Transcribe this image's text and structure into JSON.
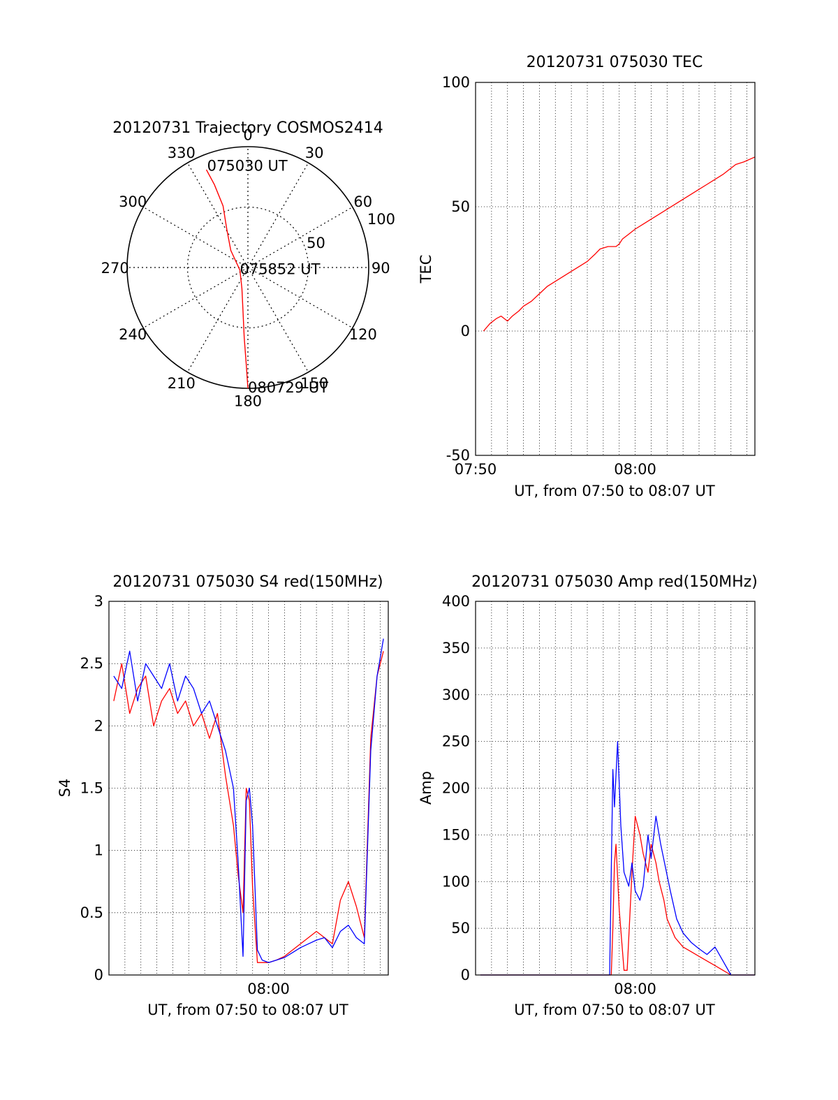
{
  "colors": {
    "red": "#ff0000",
    "blue": "#0000ff",
    "axis": "#000000"
  },
  "chart_data": [
    {
      "id": "trajectory",
      "type": "polar",
      "title": "20120731 Trajectory COSMOS2414",
      "azimuth_labels": [
        "0",
        "30",
        "60",
        "90",
        "120",
        "150",
        "180",
        "210",
        "240",
        "270",
        "300",
        "330"
      ],
      "ring_labels": [
        "50",
        "100"
      ],
      "radius_max": 100,
      "rings": [
        50,
        100
      ],
      "series": [
        {
          "color": "red",
          "points": [
            [
              337,
              88
            ],
            [
              338,
              74
            ],
            [
              338,
              55
            ],
            [
              331,
              36
            ],
            [
              315,
              20
            ],
            [
              252,
              7
            ],
            [
              196,
              18
            ],
            [
              186,
              38
            ],
            [
              183,
              58
            ],
            [
              181,
              80
            ],
            [
              180,
              100
            ]
          ]
        }
      ],
      "annotations": [
        {
          "text": "075030 UT",
          "azimuth": 338,
          "radius": 90
        },
        {
          "text": "075852 UT",
          "azimuth": 252,
          "radius": 7
        },
        {
          "text": "080729 UT",
          "azimuth": 180,
          "radius": 100
        }
      ]
    },
    {
      "id": "tec",
      "type": "line",
      "title": "20120731 075030 TEC",
      "xlabel": "UT, from 07:50 to 08:07 UT",
      "ylabel": "TEC",
      "xlim": [
        0,
        17.5
      ],
      "ylim": [
        -50,
        100
      ],
      "yticks": [
        "-50",
        "0",
        "50",
        "100"
      ],
      "xticks": [
        {
          "value": 0,
          "label": "07:50"
        },
        {
          "value": 10,
          "label": "08:00"
        }
      ],
      "series": [
        {
          "color": "red",
          "x": [
            0.5,
            0.9,
            1.3,
            1.6,
            2.0,
            2.3,
            2.7,
            3.0,
            3.5,
            4.0,
            4.5,
            5.0,
            5.5,
            6.0,
            6.5,
            7.0,
            7.5,
            7.8,
            8.3,
            8.8,
            9.0,
            9.2,
            9.6,
            10.0,
            10.5,
            11.0,
            11.5,
            12.0,
            12.5,
            13.0,
            13.5,
            14.0,
            14.5,
            15.0,
            15.5,
            15.9,
            16.3,
            16.8,
            17.5
          ],
          "y": [
            0,
            3,
            5,
            6,
            4,
            6,
            8,
            10,
            12,
            15,
            18,
            20,
            22,
            24,
            26,
            28,
            31,
            33,
            34,
            34,
            35,
            37,
            39,
            41,
            43,
            45,
            47,
            49,
            51,
            53,
            55,
            57,
            59,
            61,
            63,
            65,
            67,
            68,
            70
          ]
        }
      ]
    },
    {
      "id": "s4",
      "type": "line",
      "title": "20120731 075030 S4 red(150MHz)",
      "xlabel": "UT, from 07:50 to 08:07 UT",
      "ylabel": "S4",
      "xlim": [
        0,
        17.5
      ],
      "ylim": [
        0,
        3
      ],
      "yticks": [
        "0",
        "0.5",
        "1",
        "1.5",
        "2",
        "2.5",
        "3"
      ],
      "xticks": [
        {
          "value": 10,
          "label": "08:00"
        }
      ],
      "series": [
        {
          "color": "red",
          "x": [
            0.3,
            0.8,
            1.3,
            1.8,
            2.3,
            2.8,
            3.3,
            3.8,
            4.3,
            4.8,
            5.3,
            5.8,
            6.3,
            6.8,
            7.3,
            7.8,
            8.1,
            8.4,
            8.6,
            8.8,
            9.0,
            9.3,
            9.6,
            10.0,
            10.5,
            11.0,
            11.5,
            12.0,
            12.5,
            13.0,
            13.5,
            14.0,
            14.5,
            15.0,
            15.5,
            16.0,
            16.4,
            16.8,
            17.2
          ],
          "y": [
            2.2,
            2.5,
            2.1,
            2.3,
            2.4,
            2.0,
            2.2,
            2.3,
            2.1,
            2.2,
            2.0,
            2.1,
            1.9,
            2.1,
            1.6,
            1.2,
            0.8,
            0.5,
            1.5,
            1.4,
            0.7,
            0.1,
            0.1,
            0.1,
            0.12,
            0.15,
            0.2,
            0.25,
            0.3,
            0.35,
            0.3,
            0.25,
            0.6,
            0.75,
            0.55,
            0.3,
            1.9,
            2.4,
            2.6
          ]
        },
        {
          "color": "blue",
          "x": [
            0.3,
            0.8,
            1.3,
            1.8,
            2.3,
            2.8,
            3.3,
            3.8,
            4.3,
            4.8,
            5.3,
            5.8,
            6.3,
            6.8,
            7.3,
            7.8,
            8.1,
            8.4,
            8.6,
            8.8,
            9.0,
            9.3,
            9.6,
            10.0,
            10.5,
            11.0,
            11.5,
            12.0,
            12.5,
            13.0,
            13.5,
            14.0,
            14.5,
            15.0,
            15.5,
            16.0,
            16.4,
            16.8,
            17.2
          ],
          "y": [
            2.4,
            2.3,
            2.6,
            2.2,
            2.5,
            2.4,
            2.3,
            2.5,
            2.2,
            2.4,
            2.3,
            2.1,
            2.2,
            2.0,
            1.8,
            1.5,
            0.9,
            0.15,
            1.4,
            1.5,
            1.2,
            0.2,
            0.12,
            0.1,
            0.12,
            0.14,
            0.18,
            0.22,
            0.25,
            0.28,
            0.3,
            0.22,
            0.35,
            0.4,
            0.3,
            0.25,
            1.8,
            2.4,
            2.7
          ]
        }
      ]
    },
    {
      "id": "amp",
      "type": "line",
      "title": "20120731 075030 Amp red(150MHz)",
      "xlabel": "UT, from 07:50 to 08:07 UT",
      "ylabel": "Amp",
      "xlim": [
        0,
        17.5
      ],
      "ylim": [
        0,
        400
      ],
      "yticks": [
        "0",
        "50",
        "100",
        "150",
        "200",
        "250",
        "300",
        "350",
        "400"
      ],
      "xticks": [
        {
          "value": 10,
          "label": "08:00"
        }
      ],
      "series": [
        {
          "color": "red",
          "x": [
            0.3,
            8.5,
            8.6,
            8.7,
            8.8,
            9.0,
            9.3,
            9.5,
            9.8,
            10.0,
            10.3,
            10.5,
            10.8,
            11.0,
            11.3,
            11.5,
            11.8,
            12.0,
            12.5,
            13.0,
            13.5,
            14.0,
            14.5,
            15.0,
            15.5,
            16.0,
            17.5
          ],
          "y": [
            0,
            0,
            50,
            120,
            140,
            70,
            5,
            5,
            110,
            170,
            150,
            130,
            110,
            140,
            120,
            100,
            80,
            60,
            40,
            30,
            25,
            20,
            15,
            10,
            5,
            0,
            0
          ]
        },
        {
          "color": "blue",
          "x": [
            0.3,
            8.4,
            8.6,
            8.7,
            8.9,
            9.1,
            9.3,
            9.6,
            9.8,
            10.0,
            10.3,
            10.5,
            10.8,
            11.0,
            11.3,
            11.6,
            11.9,
            12.2,
            12.6,
            13.0,
            13.5,
            14.0,
            14.5,
            15.0,
            15.5,
            16.0,
            17.5
          ],
          "y": [
            0,
            0,
            220,
            180,
            250,
            160,
            110,
            95,
            120,
            90,
            80,
            95,
            150,
            125,
            170,
            140,
            115,
            90,
            60,
            45,
            35,
            28,
            22,
            30,
            15,
            0,
            0
          ]
        }
      ]
    }
  ]
}
